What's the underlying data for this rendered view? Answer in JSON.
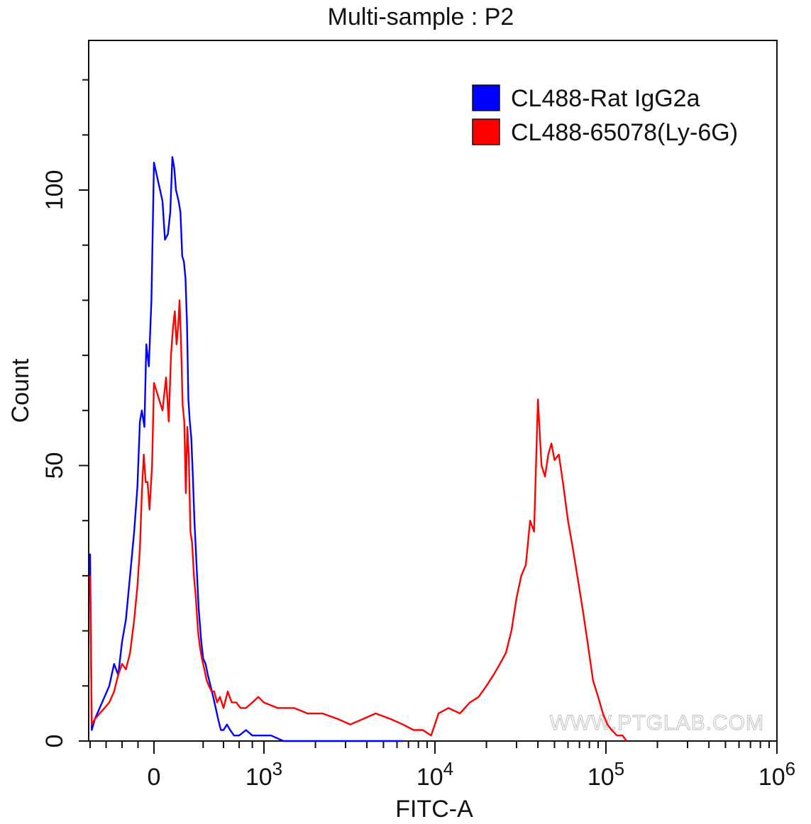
{
  "chart_data": {
    "type": "line",
    "title": "Multi-sample : P2",
    "xlabel": "FITC-A",
    "ylabel": "Count",
    "x_scale": "biexponential",
    "ylim": [
      0,
      125
    ],
    "grid": false,
    "legend_position": "top-right",
    "x_ticks": [
      {
        "value": 0,
        "label": "0",
        "exp": ""
      },
      {
        "value": 1000,
        "label": "10",
        "exp": "3"
      },
      {
        "value": 10000,
        "label": "10",
        "exp": "4"
      },
      {
        "value": 100000,
        "label": "10",
        "exp": "5"
      },
      {
        "value": 1000000,
        "label": "10",
        "exp": "6"
      }
    ],
    "y_ticks": [
      {
        "value": 0,
        "label": "0"
      },
      {
        "value": 50,
        "label": "50"
      },
      {
        "value": 100,
        "label": "100"
      }
    ],
    "series": [
      {
        "name": "CL488-Rat IgG2a",
        "color": "#0000ff",
        "points": [
          [
            -200,
            34
          ],
          [
            -195,
            2
          ],
          [
            -185,
            4
          ],
          [
            -170,
            6
          ],
          [
            -155,
            8
          ],
          [
            -140,
            10
          ],
          [
            -125,
            14
          ],
          [
            -112,
            12
          ],
          [
            -100,
            18
          ],
          [
            -88,
            22
          ],
          [
            -75,
            30
          ],
          [
            -62,
            38
          ],
          [
            -52,
            46
          ],
          [
            -44,
            58
          ],
          [
            -38,
            60
          ],
          [
            -30,
            57
          ],
          [
            -24,
            72
          ],
          [
            -16,
            68
          ],
          [
            -8,
            80
          ],
          [
            0,
            105
          ],
          [
            6,
            98
          ],
          [
            10,
            91
          ],
          [
            16,
            92
          ],
          [
            22,
            96
          ],
          [
            28,
            106
          ],
          [
            34,
            104
          ],
          [
            40,
            100
          ],
          [
            50,
            98
          ],
          [
            58,
            96
          ],
          [
            66,
            88
          ],
          [
            74,
            87
          ],
          [
            82,
            84
          ],
          [
            90,
            76
          ],
          [
            98,
            62
          ],
          [
            106,
            58
          ],
          [
            115,
            55
          ],
          [
            125,
            48
          ],
          [
            135,
            40
          ],
          [
            150,
            32
          ],
          [
            165,
            24
          ],
          [
            185,
            18
          ],
          [
            200,
            15
          ],
          [
            220,
            14
          ],
          [
            240,
            12
          ],
          [
            265,
            10
          ],
          [
            290,
            8
          ],
          [
            315,
            6
          ],
          [
            340,
            4
          ],
          [
            370,
            2
          ],
          [
            400,
            2
          ],
          [
            440,
            3
          ],
          [
            480,
            2
          ],
          [
            530,
            1
          ],
          [
            600,
            1
          ],
          [
            700,
            2
          ],
          [
            800,
            1
          ],
          [
            950,
            1
          ],
          [
            1100,
            1
          ],
          [
            1300,
            0
          ],
          [
            1600,
            0
          ],
          [
            2000,
            0
          ],
          [
            2700,
            0
          ],
          [
            3500,
            0
          ],
          [
            5000,
            0
          ],
          [
            6500,
            0
          ]
        ]
      },
      {
        "name": "CL488-65078(Ly-6G)",
        "color": "#ff0000",
        "points": [
          [
            -200,
            30
          ],
          [
            -195,
            3
          ],
          [
            -185,
            4
          ],
          [
            -170,
            5
          ],
          [
            -155,
            6
          ],
          [
            -140,
            7
          ],
          [
            -125,
            9
          ],
          [
            -112,
            12
          ],
          [
            -100,
            14
          ],
          [
            -88,
            13
          ],
          [
            -75,
            16
          ],
          [
            -62,
            22
          ],
          [
            -52,
            28
          ],
          [
            -44,
            35
          ],
          [
            -38,
            45
          ],
          [
            -32,
            52
          ],
          [
            -26,
            47
          ],
          [
            -20,
            47
          ],
          [
            -14,
            42
          ],
          [
            -6,
            50
          ],
          [
            0,
            65
          ],
          [
            6,
            60
          ],
          [
            12,
            66
          ],
          [
            18,
            58
          ],
          [
            24,
            70
          ],
          [
            30,
            75
          ],
          [
            36,
            78
          ],
          [
            42,
            72
          ],
          [
            48,
            75
          ],
          [
            54,
            80
          ],
          [
            60,
            73
          ],
          [
            68,
            61
          ],
          [
            76,
            58
          ],
          [
            84,
            45
          ],
          [
            92,
            57
          ],
          [
            100,
            52
          ],
          [
            110,
            38
          ],
          [
            120,
            36
          ],
          [
            132,
            30
          ],
          [
            145,
            26
          ],
          [
            160,
            20
          ],
          [
            175,
            17
          ],
          [
            190,
            15
          ],
          [
            210,
            13
          ],
          [
            230,
            11
          ],
          [
            250,
            10
          ],
          [
            275,
            9
          ],
          [
            300,
            9
          ],
          [
            330,
            7
          ],
          [
            360,
            8
          ],
          [
            400,
            6
          ],
          [
            450,
            9
          ],
          [
            500,
            7
          ],
          [
            560,
            7
          ],
          [
            620,
            6
          ],
          [
            700,
            6
          ],
          [
            800,
            7
          ],
          [
            900,
            8
          ],
          [
            1000,
            7
          ],
          [
            1200,
            6
          ],
          [
            1500,
            6
          ],
          [
            1800,
            5
          ],
          [
            2200,
            5
          ],
          [
            2700,
            4
          ],
          [
            3200,
            3
          ],
          [
            3800,
            4
          ],
          [
            4500,
            5
          ],
          [
            5500,
            4
          ],
          [
            6500,
            3
          ],
          [
            7500,
            2
          ],
          [
            8500,
            2
          ],
          [
            9500,
            1
          ],
          [
            10500,
            5
          ],
          [
            12000,
            6
          ],
          [
            14000,
            5
          ],
          [
            16000,
            7
          ],
          [
            18000,
            8
          ],
          [
            20000,
            10
          ],
          [
            22000,
            12
          ],
          [
            24000,
            14
          ],
          [
            26000,
            16
          ],
          [
            28000,
            20
          ],
          [
            30000,
            26
          ],
          [
            32000,
            30
          ],
          [
            34000,
            32
          ],
          [
            36000,
            40
          ],
          [
            38000,
            38
          ],
          [
            40000,
            62
          ],
          [
            42000,
            50
          ],
          [
            44000,
            48
          ],
          [
            46000,
            52
          ],
          [
            48000,
            54
          ],
          [
            50000,
            51
          ],
          [
            53000,
            52
          ],
          [
            56000,
            47
          ],
          [
            60000,
            40
          ],
          [
            64000,
            35
          ],
          [
            68000,
            30
          ],
          [
            73000,
            24
          ],
          [
            78000,
            18
          ],
          [
            84000,
            11
          ],
          [
            90000,
            8
          ],
          [
            96000,
            5
          ],
          [
            102000,
            3
          ],
          [
            108000,
            2
          ],
          [
            116000,
            1
          ],
          [
            125000,
            1
          ],
          [
            132000,
            0
          ]
        ]
      }
    ]
  },
  "watermark": "WWW.PTGLAB.COM"
}
